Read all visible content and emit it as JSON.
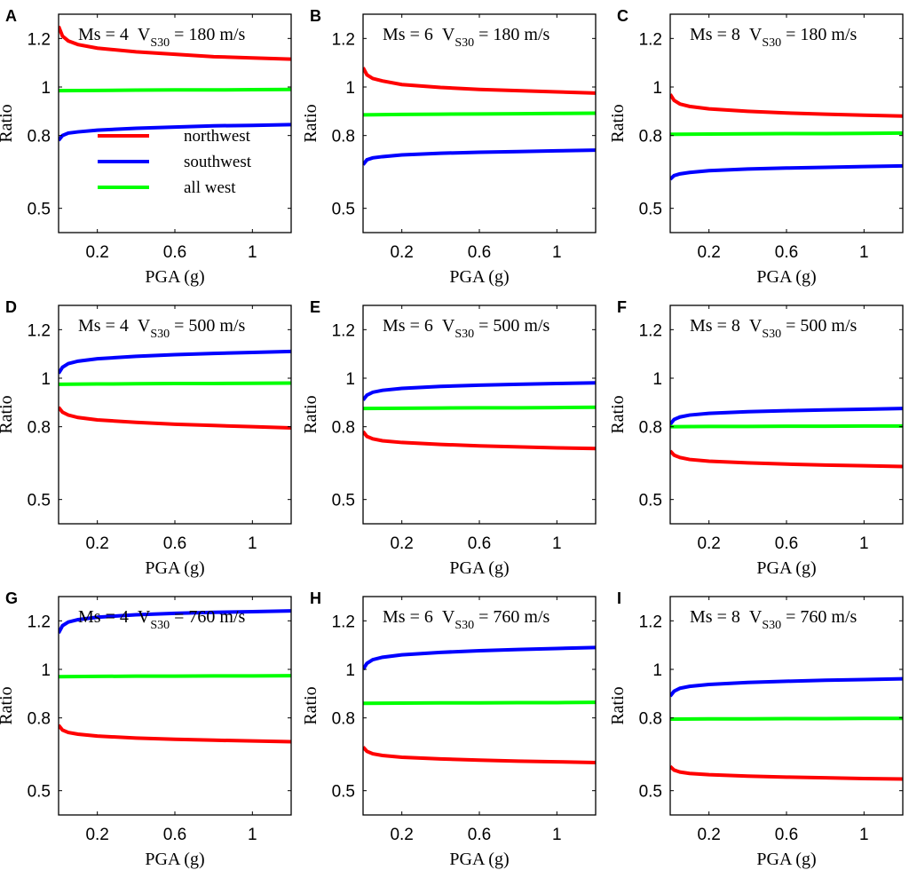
{
  "chart_data": [
    {
      "panel": "A",
      "type": "line",
      "title": "",
      "annotation": {
        "ms": "Ms = 4",
        "v": "V",
        "v_sub": "S30",
        "v_value": "= 180 m/s"
      },
      "xlabel": "PGA (g)",
      "ylabel": "Ratio",
      "xlim": [
        0,
        1.2
      ],
      "ylim": [
        0.4,
        1.3
      ],
      "xticks": [
        0.2,
        0.6,
        1
      ],
      "xtick_labels": [
        "0.2",
        "0.6",
        "1"
      ],
      "yticks": [
        0.5,
        0.8,
        1,
        1.2
      ],
      "ytick_labels": [
        "0.5",
        "0.8",
        "1",
        "1.2"
      ],
      "legend": true,
      "legend_position": "center-left",
      "series": [
        {
          "name": "northwest",
          "color": "#ff0000",
          "x": [
            0,
            0.02,
            0.05,
            0.1,
            0.2,
            0.4,
            0.6,
            0.8,
            1.0,
            1.2
          ],
          "values": [
            1.25,
            1.21,
            1.19,
            1.175,
            1.16,
            1.145,
            1.135,
            1.125,
            1.12,
            1.115
          ]
        },
        {
          "name": "southwest",
          "color": "#0000ff",
          "x": [
            0,
            0.02,
            0.05,
            0.1,
            0.2,
            0.4,
            0.6,
            0.8,
            1.0,
            1.2
          ],
          "values": [
            0.78,
            0.8,
            0.81,
            0.815,
            0.822,
            0.83,
            0.835,
            0.84,
            0.842,
            0.845
          ]
        },
        {
          "name": "all west",
          "color": "#00ff00",
          "x": [
            0,
            0.2,
            0.4,
            0.6,
            0.8,
            1.0,
            1.2
          ],
          "values": [
            0.985,
            0.986,
            0.987,
            0.988,
            0.988,
            0.989,
            0.99
          ]
        }
      ]
    },
    {
      "panel": "B",
      "type": "line",
      "title": "",
      "annotation": {
        "ms": "Ms = 6",
        "v": "V",
        "v_sub": "S30",
        "v_value": "= 180 m/s"
      },
      "xlabel": "PGA (g)",
      "ylabel": "Ratio",
      "xlim": [
        0,
        1.2
      ],
      "ylim": [
        0.4,
        1.3
      ],
      "xticks": [
        0.2,
        0.6,
        1
      ],
      "xtick_labels": [
        "0.2",
        "0.6",
        "1"
      ],
      "yticks": [
        0.5,
        0.8,
        1,
        1.2
      ],
      "ytick_labels": [
        "0.5",
        "0.8",
        "1",
        "1.2"
      ],
      "legend": false,
      "series": [
        {
          "name": "northwest",
          "color": "#ff0000",
          "x": [
            0,
            0.02,
            0.05,
            0.1,
            0.2,
            0.4,
            0.6,
            0.8,
            1.0,
            1.2
          ],
          "values": [
            1.08,
            1.05,
            1.035,
            1.025,
            1.01,
            0.998,
            0.99,
            0.985,
            0.98,
            0.975
          ]
        },
        {
          "name": "southwest",
          "color": "#0000ff",
          "x": [
            0,
            0.02,
            0.05,
            0.1,
            0.2,
            0.4,
            0.6,
            0.8,
            1.0,
            1.2
          ],
          "values": [
            0.68,
            0.7,
            0.708,
            0.713,
            0.72,
            0.727,
            0.731,
            0.734,
            0.737,
            0.74
          ]
        },
        {
          "name": "all west",
          "color": "#00ff00",
          "x": [
            0,
            0.2,
            0.4,
            0.6,
            0.8,
            1.0,
            1.2
          ],
          "values": [
            0.885,
            0.887,
            0.888,
            0.889,
            0.89,
            0.891,
            0.892
          ]
        }
      ]
    },
    {
      "panel": "C",
      "type": "line",
      "title": "",
      "annotation": {
        "ms": "Ms = 8",
        "v": "V",
        "v_sub": "S30",
        "v_value": "= 180 m/s"
      },
      "xlabel": "PGA (g)",
      "ylabel": "Ratio",
      "xlim": [
        0,
        1.2
      ],
      "ylim": [
        0.4,
        1.3
      ],
      "xticks": [
        0.2,
        0.6,
        1
      ],
      "xtick_labels": [
        "0.2",
        "0.6",
        "1"
      ],
      "yticks": [
        0.5,
        0.8,
        1,
        1.2
      ],
      "ytick_labels": [
        "0.5",
        "0.8",
        "1",
        "1.2"
      ],
      "legend": false,
      "series": [
        {
          "name": "northwest",
          "color": "#ff0000",
          "x": [
            0,
            0.02,
            0.05,
            0.1,
            0.2,
            0.4,
            0.6,
            0.8,
            1.0,
            1.2
          ],
          "values": [
            0.97,
            0.945,
            0.93,
            0.92,
            0.91,
            0.9,
            0.893,
            0.888,
            0.884,
            0.88
          ]
        },
        {
          "name": "southwest",
          "color": "#0000ff",
          "x": [
            0,
            0.02,
            0.05,
            0.1,
            0.2,
            0.4,
            0.6,
            0.8,
            1.0,
            1.2
          ],
          "values": [
            0.62,
            0.635,
            0.642,
            0.648,
            0.655,
            0.662,
            0.666,
            0.669,
            0.672,
            0.675
          ]
        },
        {
          "name": "all west",
          "color": "#00ff00",
          "x": [
            0,
            0.2,
            0.4,
            0.6,
            0.8,
            1.0,
            1.2
          ],
          "values": [
            0.805,
            0.806,
            0.807,
            0.808,
            0.808,
            0.809,
            0.81
          ]
        }
      ]
    },
    {
      "panel": "D",
      "type": "line",
      "title": "",
      "annotation": {
        "ms": "Ms = 4",
        "v": "V",
        "v_sub": "S30",
        "v_value": "= 500 m/s"
      },
      "xlabel": "PGA (g)",
      "ylabel": "Ratio",
      "xlim": [
        0,
        1.2
      ],
      "ylim": [
        0.4,
        1.3
      ],
      "xticks": [
        0.2,
        0.6,
        1
      ],
      "xtick_labels": [
        "0.2",
        "0.6",
        "1"
      ],
      "yticks": [
        0.5,
        0.8,
        1,
        1.2
      ],
      "ytick_labels": [
        "0.5",
        "0.8",
        "1",
        "1.2"
      ],
      "legend": false,
      "series": [
        {
          "name": "northwest",
          "color": "#ff0000",
          "x": [
            0,
            0.02,
            0.05,
            0.1,
            0.2,
            0.4,
            0.6,
            0.8,
            1.0,
            1.2
          ],
          "values": [
            0.88,
            0.86,
            0.848,
            0.838,
            0.828,
            0.818,
            0.81,
            0.805,
            0.8,
            0.795
          ]
        },
        {
          "name": "southwest",
          "color": "#0000ff",
          "x": [
            0,
            0.02,
            0.05,
            0.1,
            0.2,
            0.4,
            0.6,
            0.8,
            1.0,
            1.2
          ],
          "values": [
            1.02,
            1.045,
            1.06,
            1.07,
            1.08,
            1.09,
            1.097,
            1.102,
            1.106,
            1.11
          ]
        },
        {
          "name": "all west",
          "color": "#00ff00",
          "x": [
            0,
            0.2,
            0.4,
            0.6,
            0.8,
            1.0,
            1.2
          ],
          "values": [
            0.975,
            0.976,
            0.977,
            0.978,
            0.978,
            0.979,
            0.98
          ]
        }
      ]
    },
    {
      "panel": "E",
      "type": "line",
      "title": "",
      "annotation": {
        "ms": "Ms = 6",
        "v": "V",
        "v_sub": "S30",
        "v_value": "= 500 m/s"
      },
      "xlabel": "PGA (g)",
      "ylabel": "Ratio",
      "xlim": [
        0,
        1.2
      ],
      "ylim": [
        0.4,
        1.3
      ],
      "xticks": [
        0.2,
        0.6,
        1
      ],
      "xtick_labels": [
        "0.2",
        "0.6",
        "1"
      ],
      "yticks": [
        0.5,
        0.8,
        1,
        1.2
      ],
      "ytick_labels": [
        "0.5",
        "0.8",
        "1",
        "1.2"
      ],
      "legend": false,
      "series": [
        {
          "name": "northwest",
          "color": "#ff0000",
          "x": [
            0,
            0.02,
            0.05,
            0.1,
            0.2,
            0.4,
            0.6,
            0.8,
            1.0,
            1.2
          ],
          "values": [
            0.78,
            0.76,
            0.75,
            0.742,
            0.735,
            0.727,
            0.721,
            0.717,
            0.713,
            0.71
          ]
        },
        {
          "name": "southwest",
          "color": "#0000ff",
          "x": [
            0,
            0.02,
            0.05,
            0.1,
            0.2,
            0.4,
            0.6,
            0.8,
            1.0,
            1.2
          ],
          "values": [
            0.91,
            0.93,
            0.942,
            0.95,
            0.958,
            0.966,
            0.971,
            0.975,
            0.978,
            0.981
          ]
        },
        {
          "name": "all west",
          "color": "#00ff00",
          "x": [
            0,
            0.2,
            0.4,
            0.6,
            0.8,
            1.0,
            1.2
          ],
          "values": [
            0.875,
            0.876,
            0.877,
            0.878,
            0.878,
            0.879,
            0.88
          ]
        }
      ]
    },
    {
      "panel": "F",
      "type": "line",
      "title": "",
      "annotation": {
        "ms": "Ms = 8",
        "v": "V",
        "v_sub": "S30",
        "v_value": "= 500 m/s"
      },
      "xlabel": "PGA (g)",
      "ylabel": "Ratio",
      "xlim": [
        0,
        1.2
      ],
      "ylim": [
        0.4,
        1.3
      ],
      "xticks": [
        0.2,
        0.6,
        1
      ],
      "xtick_labels": [
        "0.2",
        "0.6",
        "1"
      ],
      "yticks": [
        0.5,
        0.8,
        1,
        1.2
      ],
      "ytick_labels": [
        "0.5",
        "0.8",
        "1",
        "1.2"
      ],
      "legend": false,
      "series": [
        {
          "name": "northwest",
          "color": "#ff0000",
          "x": [
            0,
            0.02,
            0.05,
            0.1,
            0.2,
            0.4,
            0.6,
            0.8,
            1.0,
            1.2
          ],
          "values": [
            0.7,
            0.683,
            0.673,
            0.665,
            0.658,
            0.651,
            0.646,
            0.642,
            0.639,
            0.636
          ]
        },
        {
          "name": "southwest",
          "color": "#0000ff",
          "x": [
            0,
            0.02,
            0.05,
            0.1,
            0.2,
            0.4,
            0.6,
            0.8,
            1.0,
            1.2
          ],
          "values": [
            0.81,
            0.83,
            0.84,
            0.848,
            0.855,
            0.862,
            0.866,
            0.869,
            0.872,
            0.875
          ]
        },
        {
          "name": "all west",
          "color": "#00ff00",
          "x": [
            0,
            0.2,
            0.4,
            0.6,
            0.8,
            1.0,
            1.2
          ],
          "values": [
            0.8,
            0.801,
            0.801,
            0.802,
            0.802,
            0.803,
            0.803
          ]
        }
      ]
    },
    {
      "panel": "G",
      "type": "line",
      "title": "",
      "annotation": {
        "ms": "Ms = 4",
        "v": "V",
        "v_sub": "S30",
        "v_value": "= 760 m/s"
      },
      "xlabel": "PGA (g)",
      "ylabel": "Ratio",
      "xlim": [
        0,
        1.2
      ],
      "ylim": [
        0.4,
        1.3
      ],
      "xticks": [
        0.2,
        0.6,
        1
      ],
      "xtick_labels": [
        "0.2",
        "0.6",
        "1"
      ],
      "yticks": [
        0.5,
        0.8,
        1,
        1.2
      ],
      "ytick_labels": [
        "0.5",
        "0.8",
        "1",
        "1.2"
      ],
      "legend": false,
      "series": [
        {
          "name": "northwest",
          "color": "#ff0000",
          "x": [
            0,
            0.02,
            0.05,
            0.1,
            0.2,
            0.4,
            0.6,
            0.8,
            1.0,
            1.2
          ],
          "values": [
            0.77,
            0.75,
            0.74,
            0.733,
            0.725,
            0.717,
            0.712,
            0.708,
            0.705,
            0.702
          ]
        },
        {
          "name": "southwest",
          "color": "#0000ff",
          "x": [
            0,
            0.02,
            0.05,
            0.1,
            0.2,
            0.4,
            0.6,
            0.8,
            1.0,
            1.2
          ],
          "values": [
            1.15,
            1.18,
            1.195,
            1.205,
            1.215,
            1.225,
            1.231,
            1.235,
            1.238,
            1.241
          ]
        },
        {
          "name": "all west",
          "color": "#00ff00",
          "x": [
            0,
            0.2,
            0.4,
            0.6,
            0.8,
            1.0,
            1.2
          ],
          "values": [
            0.97,
            0.971,
            0.972,
            0.972,
            0.973,
            0.973,
            0.974
          ]
        }
      ]
    },
    {
      "panel": "H",
      "type": "line",
      "title": "",
      "annotation": {
        "ms": "Ms = 6",
        "v": "V",
        "v_sub": "S30",
        "v_value": "= 760 m/s"
      },
      "xlabel": "PGA (g)",
      "ylabel": "Ratio",
      "xlim": [
        0,
        1.2
      ],
      "ylim": [
        0.4,
        1.3
      ],
      "xticks": [
        0.2,
        0.6,
        1
      ],
      "xtick_labels": [
        "0.2",
        "0.6",
        "1"
      ],
      "yticks": [
        0.5,
        0.8,
        1,
        1.2
      ],
      "ytick_labels": [
        "0.5",
        "0.8",
        "1",
        "1.2"
      ],
      "legend": false,
      "series": [
        {
          "name": "northwest",
          "color": "#ff0000",
          "x": [
            0,
            0.02,
            0.05,
            0.1,
            0.2,
            0.4,
            0.6,
            0.8,
            1.0,
            1.2
          ],
          "values": [
            0.68,
            0.662,
            0.652,
            0.645,
            0.638,
            0.631,
            0.626,
            0.622,
            0.619,
            0.616
          ]
        },
        {
          "name": "southwest",
          "color": "#0000ff",
          "x": [
            0,
            0.02,
            0.05,
            0.1,
            0.2,
            0.4,
            0.6,
            0.8,
            1.0,
            1.2
          ],
          "values": [
            1.0,
            1.025,
            1.04,
            1.05,
            1.06,
            1.07,
            1.077,
            1.082,
            1.086,
            1.09
          ]
        },
        {
          "name": "all west",
          "color": "#00ff00",
          "x": [
            0,
            0.2,
            0.4,
            0.6,
            0.8,
            1.0,
            1.2
          ],
          "values": [
            0.86,
            0.861,
            0.862,
            0.862,
            0.863,
            0.863,
            0.864
          ]
        }
      ]
    },
    {
      "panel": "I",
      "type": "line",
      "title": "",
      "annotation": {
        "ms": "Ms = 8",
        "v": "V",
        "v_sub": "S30",
        "v_value": "= 760 m/s"
      },
      "xlabel": "PGA (g)",
      "ylabel": "Ratio",
      "xlim": [
        0,
        1.2
      ],
      "ylim": [
        0.4,
        1.3
      ],
      "xticks": [
        0.2,
        0.6,
        1
      ],
      "xtick_labels": [
        "0.2",
        "0.6",
        "1"
      ],
      "yticks": [
        0.5,
        0.8,
        1,
        1.2
      ],
      "ytick_labels": [
        "0.5",
        "0.8",
        "1",
        "1.2"
      ],
      "legend": false,
      "series": [
        {
          "name": "northwest",
          "color": "#ff0000",
          "x": [
            0,
            0.02,
            0.05,
            0.1,
            0.2,
            0.4,
            0.6,
            0.8,
            1.0,
            1.2
          ],
          "values": [
            0.6,
            0.585,
            0.577,
            0.571,
            0.566,
            0.56,
            0.556,
            0.553,
            0.55,
            0.548
          ]
        },
        {
          "name": "southwest",
          "color": "#0000ff",
          "x": [
            0,
            0.02,
            0.05,
            0.1,
            0.2,
            0.4,
            0.6,
            0.8,
            1.0,
            1.2
          ],
          "values": [
            0.89,
            0.91,
            0.922,
            0.93,
            0.938,
            0.946,
            0.951,
            0.955,
            0.958,
            0.961
          ]
        },
        {
          "name": "all west",
          "color": "#00ff00",
          "x": [
            0,
            0.2,
            0.4,
            0.6,
            0.8,
            1.0,
            1.2
          ],
          "values": [
            0.795,
            0.796,
            0.796,
            0.797,
            0.797,
            0.798,
            0.798
          ]
        }
      ]
    }
  ]
}
